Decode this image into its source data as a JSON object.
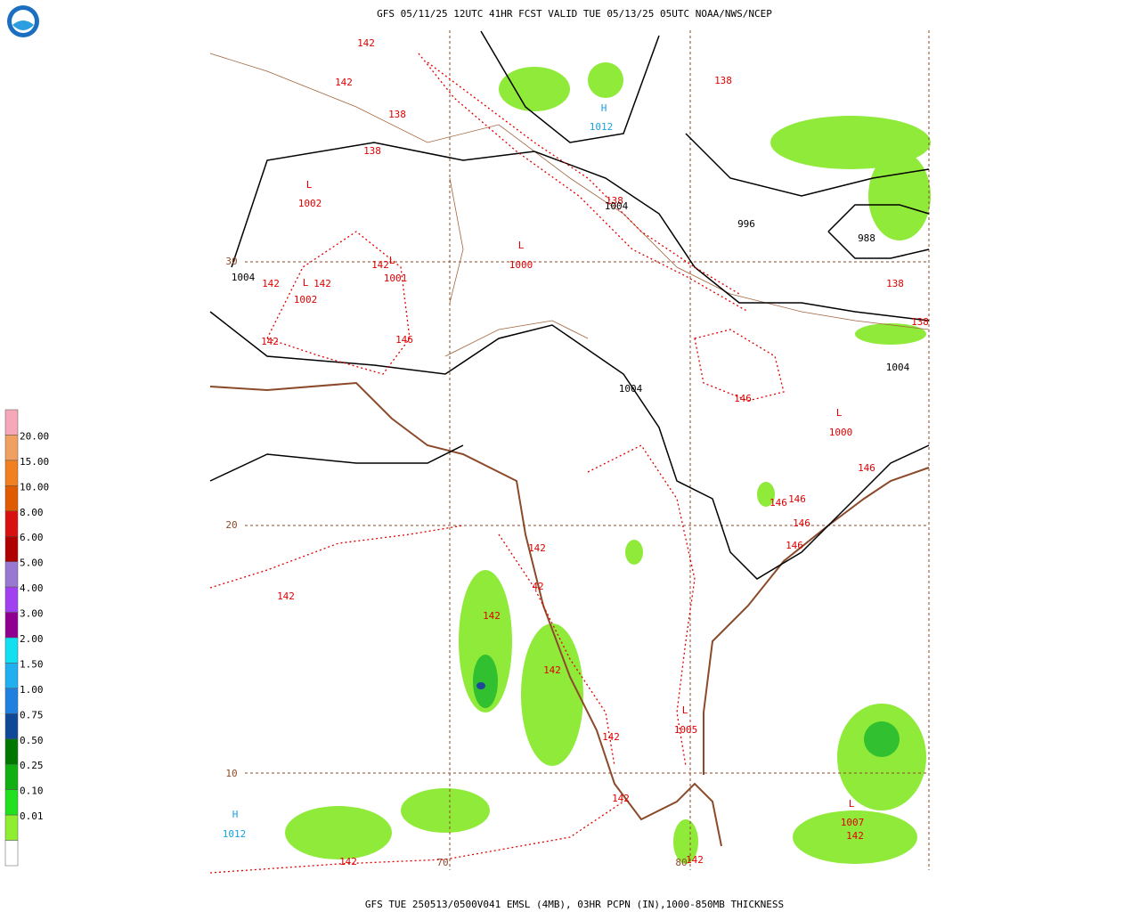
{
  "header": {
    "title": "GFS 05/11/25 12UTC 41HR FCST VALID TUE 05/13/25 05UTC NOAA/NWS/NCEP"
  },
  "footer": {
    "text": "GFS TUE 250513/0500V041 EMSL (4MB), 03HR PCPN (IN),1000-850MB THICKNESS"
  },
  "legend": {
    "colors": [
      "#f4a8b8",
      "#f0a060",
      "#f08020",
      "#e05a00",
      "#d81010",
      "#b00000",
      "#9878d0",
      "#a040f0",
      "#900090",
      "#10e0f0",
      "#20b0f0",
      "#2080e0",
      "#104898",
      "#007800",
      "#10b010",
      "#20e020",
      "#90ee30",
      "#ffffff"
    ],
    "labels": [
      "20.00",
      "15.00",
      "10.00",
      "8.00",
      "6.00",
      "5.00",
      "4.00",
      "3.00",
      "2.00",
      "1.50",
      "1.00",
      "0.75",
      "0.50",
      "0.25",
      "0.10",
      "0.01"
    ]
  },
  "map": {
    "systems": [
      {
        "symbol": "H",
        "pressure": 1012
      },
      {
        "symbol": "L",
        "pressure": 1002
      },
      {
        "symbol": "L",
        "pressure": 1000
      },
      {
        "symbol": "L",
        "pressure": 1001
      },
      {
        "symbol": "L",
        "pressure": 1002
      },
      {
        "symbol": "L",
        "pressure": 1000
      },
      {
        "symbol": "L",
        "pressure": 1005
      },
      {
        "symbol": "L",
        "pressure": 1007
      },
      {
        "symbol": "H",
        "pressure": 1012
      }
    ],
    "thickness_labels": [
      142,
      142,
      138,
      138,
      138,
      142,
      142,
      142,
      142,
      146,
      138,
      138,
      146,
      146,
      146,
      146,
      146,
      146,
      142,
      142,
      42,
      142,
      142,
      142,
      142,
      142,
      142,
      142,
      138
    ],
    "isobar_labels": [
      1004,
      1004,
      996,
      988,
      1004,
      1004
    ],
    "latitude_labels": [
      30,
      20,
      10
    ],
    "longitude_labels": [
      70,
      80
    ]
  }
}
